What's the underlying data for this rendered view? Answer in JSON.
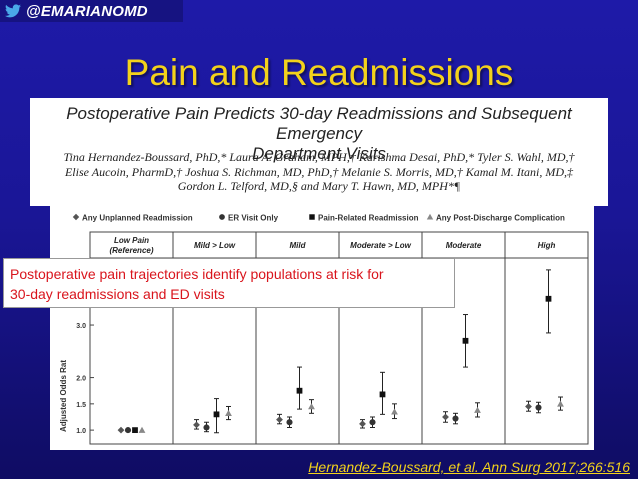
{
  "header": {
    "handle": "@EMARIANOMD",
    "twitter_icon": "twitter-bird-icon"
  },
  "slide": {
    "title": "Pain and Readmissions",
    "citation": "Hernandez-Boussard, et al. Ann Surg 2017;266:516"
  },
  "paper": {
    "title_line1": "Postoperative Pain Predicts 30-day Readmissions and Subsequent Emergency",
    "title_line2": "Department Visits",
    "authors_line1": "Tina Hernandez-Boussard, PhD,* Laura A. Graham, MPH,† Karishma Desai, PhD,* Tyler S. Wahl, MD,†",
    "authors_line2": "Elise Aucoin, PharmD,† Joshua S. Richman, MD, PhD,† Melanie S. Morris, MD,† Kamal M. Itani, MD,‡",
    "authors_line3": "Gordon L. Telford, MD,§ and Mary T. Hawn, MD, MPH*¶"
  },
  "callout": {
    "line1": "Postoperative pain trajectories identify populations at risk for",
    "line2": "30-day readmissions and ED visits"
  },
  "chart_data": {
    "type": "scatter",
    "categories": [
      "Low Pain (Reference)",
      "Mild > Low",
      "Mild",
      "Moderate > Low",
      "Moderate",
      "High"
    ],
    "ylabel": "Adjusted Odds Ratio",
    "ylabel_visible": "Adjusted Odds Rat",
    "yticks": [
      1.0,
      1.5,
      2.0,
      3.0
    ],
    "ylim": [
      0.85,
      4.2
    ],
    "legend_position": "top",
    "series": [
      {
        "name": "Any Unplanned Readmission",
        "marker": "diamond",
        "color": "#555555",
        "values": [
          1.0,
          1.1,
          1.2,
          1.12,
          1.25,
          1.45
        ],
        "lower": [
          1.0,
          1.02,
          1.12,
          1.04,
          1.15,
          1.36
        ],
        "upper": [
          1.0,
          1.2,
          1.3,
          1.2,
          1.35,
          1.55
        ]
      },
      {
        "name": "ER Visit Only",
        "marker": "circle",
        "color": "#333333",
        "values": [
          1.0,
          1.05,
          1.15,
          1.15,
          1.22,
          1.43
        ],
        "lower": [
          1.0,
          0.97,
          1.05,
          1.05,
          1.12,
          1.33
        ],
        "upper": [
          1.0,
          1.15,
          1.25,
          1.25,
          1.32,
          1.53
        ]
      },
      {
        "name": "Pain-Related Readmission",
        "marker": "square",
        "color": "#111111",
        "values": [
          1.0,
          1.3,
          1.75,
          1.68,
          2.7,
          3.5
        ],
        "lower": [
          1.0,
          0.95,
          1.4,
          1.3,
          2.2,
          2.85
        ],
        "upper": [
          1.0,
          1.6,
          2.2,
          2.1,
          3.2,
          4.05
        ]
      },
      {
        "name": "Any Post-Discharge Complication",
        "marker": "triangle",
        "color": "#888888",
        "values": [
          1.0,
          1.32,
          1.45,
          1.35,
          1.38,
          1.5
        ],
        "lower": [
          1.0,
          1.2,
          1.32,
          1.22,
          1.25,
          1.38
        ],
        "upper": [
          1.0,
          1.45,
          1.58,
          1.5,
          1.52,
          1.63
        ]
      }
    ]
  }
}
